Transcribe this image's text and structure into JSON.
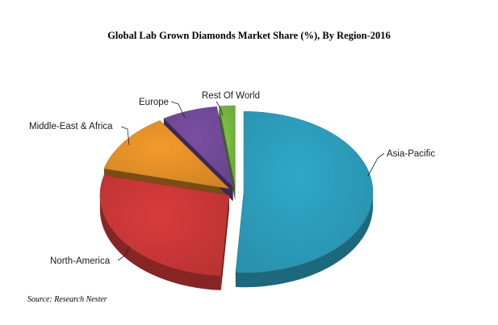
{
  "chart_data": {
    "type": "pie",
    "title": "Global Lab Grown Diamonds Market Share (%), By Region-2016",
    "three_d": true,
    "exploded": true,
    "slices": [
      {
        "label": "Asia-Pacific",
        "value": 51,
        "color": "#2fa8c8"
      },
      {
        "label": "North-America",
        "value": 28,
        "color": "#d93b3b"
      },
      {
        "label": "Middle-East & Africa",
        "value": 12,
        "color": "#f39a2a"
      },
      {
        "label": "Europe",
        "value": 7,
        "color": "#7a4fa3"
      },
      {
        "label": "Rest Of World",
        "value": 2,
        "color": "#7cc142"
      }
    ]
  },
  "source": "Source: Research Nester"
}
